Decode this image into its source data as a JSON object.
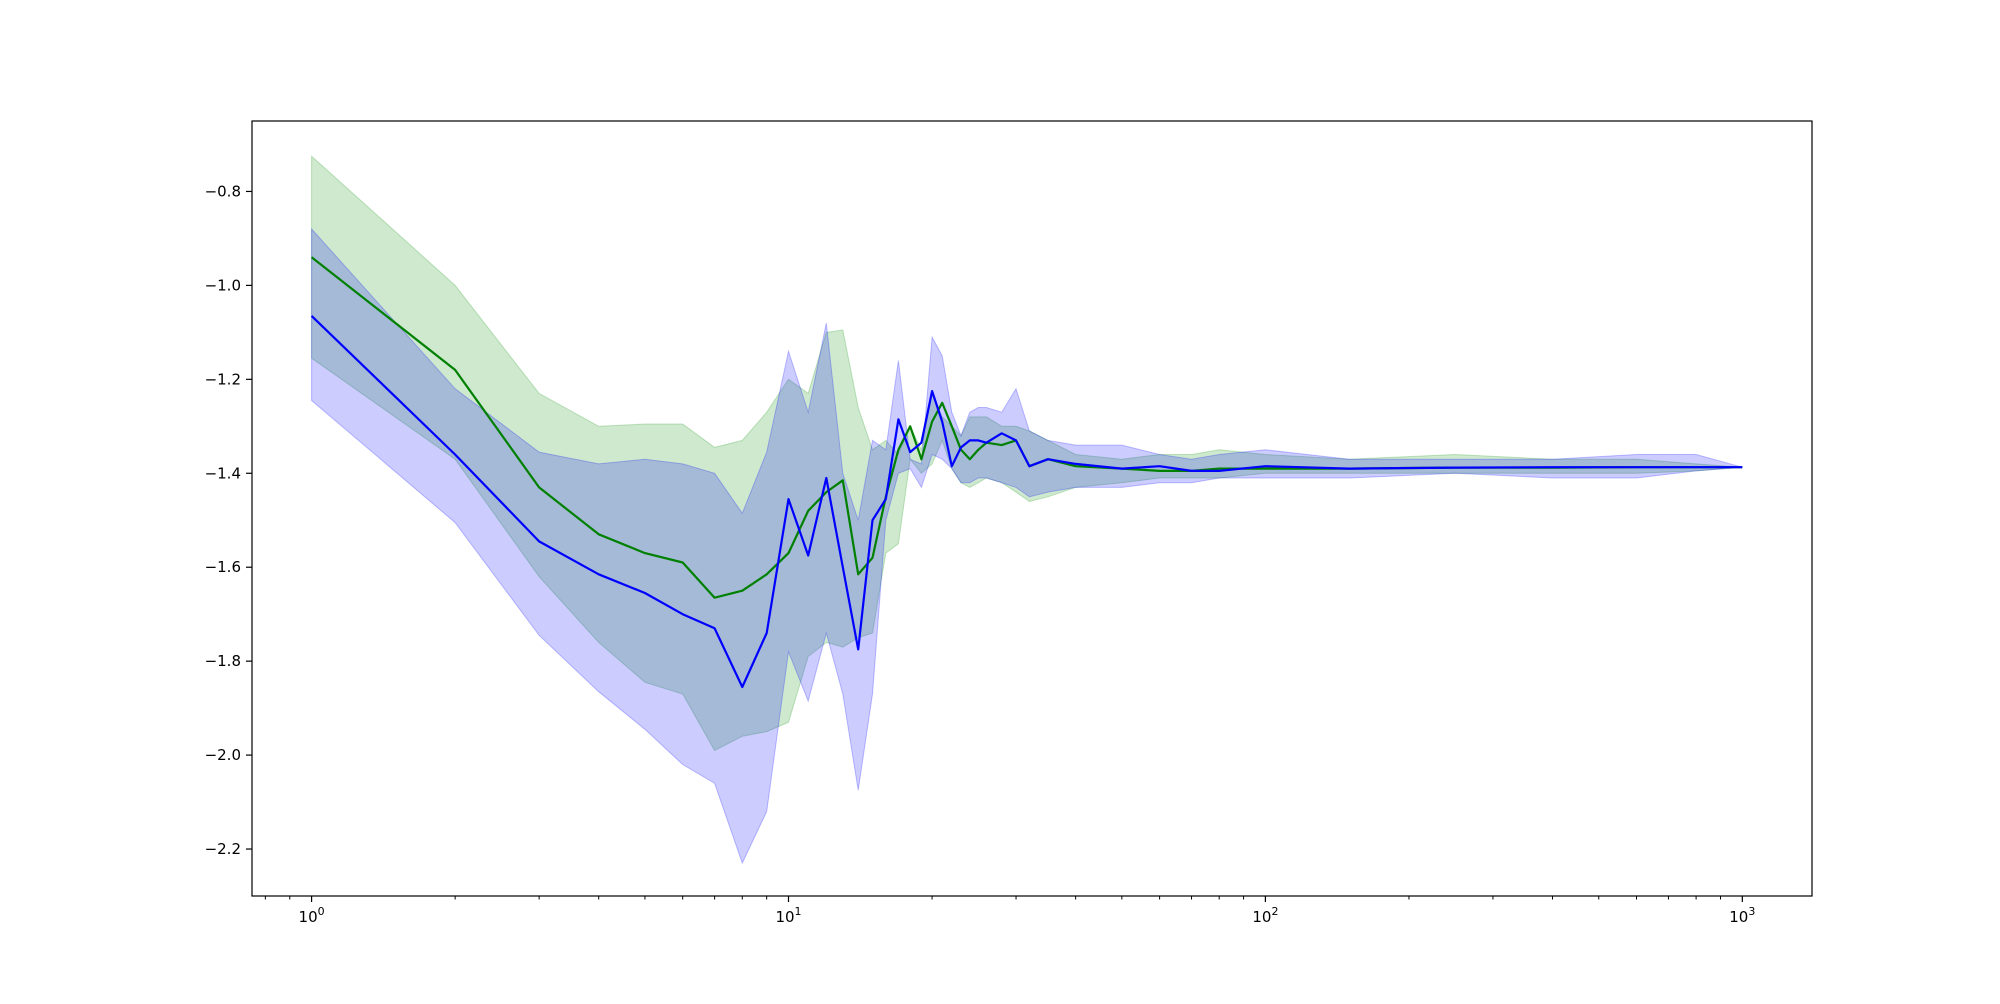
{
  "chart_data": {
    "type": "line",
    "title": "",
    "xlabel": "",
    "ylabel": "",
    "xscale": "log",
    "xlim": [
      0.75,
      1400
    ],
    "ylim": [
      -2.3,
      -0.65
    ],
    "grid": false,
    "legend": "none",
    "x_ticks": [
      {
        "value": 1,
        "base": "10",
        "exp": "0"
      },
      {
        "value": 10,
        "base": "10",
        "exp": "1"
      },
      {
        "value": 100,
        "base": "10",
        "exp": "2"
      },
      {
        "value": 1000,
        "base": "10",
        "exp": "3"
      }
    ],
    "y_ticks": [
      {
        "value": -0.8,
        "label": "−0.8"
      },
      {
        "value": -1.0,
        "label": "−1.0"
      },
      {
        "value": -1.2,
        "label": "−1.2"
      },
      {
        "value": -1.4,
        "label": "−1.4"
      },
      {
        "value": -1.6,
        "label": "−1.6"
      },
      {
        "value": -1.8,
        "label": "−1.8"
      },
      {
        "value": -2.0,
        "label": "−2.0"
      },
      {
        "value": -2.2,
        "label": "−2.2"
      }
    ],
    "series": [
      {
        "color": "#008000",
        "band_color": "#2ca02c",
        "band_opacity": 0.23,
        "x": [
          1,
          2,
          3,
          4,
          5,
          6,
          7,
          8,
          9,
          10,
          11,
          12,
          13,
          14,
          15,
          16,
          17,
          18,
          19,
          20,
          21,
          22,
          23,
          24,
          25,
          26,
          28,
          30,
          32,
          35,
          40,
          50,
          60,
          70,
          80,
          100,
          150,
          250,
          400,
          600,
          800,
          1000
        ],
        "y": [
          -0.94,
          -1.18,
          -1.43,
          -1.53,
          -1.57,
          -1.59,
          -1.665,
          -1.65,
          -1.615,
          -1.57,
          -1.48,
          -1.44,
          -1.415,
          -1.615,
          -1.58,
          -1.45,
          -1.35,
          -1.3,
          -1.37,
          -1.29,
          -1.25,
          -1.3,
          -1.35,
          -1.37,
          -1.35,
          -1.335,
          -1.34,
          -1.33,
          -1.385,
          -1.37,
          -1.385,
          -1.39,
          -1.395,
          -1.395,
          -1.39,
          -1.39,
          -1.39,
          -1.388,
          -1.388,
          -1.387,
          -1.387,
          -1.387
        ],
        "upper": [
          -0.725,
          -1.0,
          -1.23,
          -1.3,
          -1.295,
          -1.295,
          -1.345,
          -1.33,
          -1.27,
          -1.2,
          -1.23,
          -1.1,
          -1.095,
          -1.26,
          -1.35,
          -1.33,
          -1.36,
          -1.3,
          -1.35,
          -1.23,
          -1.28,
          -1.3,
          -1.32,
          -1.28,
          -1.28,
          -1.28,
          -1.3,
          -1.3,
          -1.31,
          -1.33,
          -1.36,
          -1.37,
          -1.36,
          -1.36,
          -1.35,
          -1.36,
          -1.37,
          -1.36,
          -1.37,
          -1.37,
          -1.38,
          -1.387
        ],
        "lower": [
          -1.155,
          -1.37,
          -1.62,
          -1.76,
          -1.845,
          -1.87,
          -1.99,
          -1.96,
          -1.95,
          -1.93,
          -1.79,
          -1.76,
          -1.77,
          -1.75,
          -1.74,
          -1.57,
          -1.55,
          -1.37,
          -1.4,
          -1.38,
          -1.33,
          -1.39,
          -1.42,
          -1.43,
          -1.42,
          -1.41,
          -1.42,
          -1.44,
          -1.46,
          -1.45,
          -1.43,
          -1.42,
          -1.41,
          -1.41,
          -1.41,
          -1.4,
          -1.4,
          -1.4,
          -1.4,
          -1.4,
          -1.395,
          -1.387
        ]
      },
      {
        "color": "#0000ff",
        "band_color": "#0000ff",
        "band_opacity": 0.2,
        "x": [
          1,
          2,
          3,
          4,
          5,
          6,
          7,
          8,
          9,
          10,
          11,
          12,
          13,
          14,
          15,
          16,
          17,
          18,
          19,
          20,
          21,
          22,
          23,
          24,
          25,
          26,
          28,
          30,
          32,
          35,
          40,
          50,
          60,
          70,
          80,
          100,
          150,
          250,
          400,
          600,
          800,
          1000
        ],
        "y": [
          -1.065,
          -1.36,
          -1.545,
          -1.615,
          -1.655,
          -1.7,
          -1.73,
          -1.855,
          -1.74,
          -1.455,
          -1.575,
          -1.41,
          -1.6,
          -1.775,
          -1.5,
          -1.455,
          -1.285,
          -1.355,
          -1.335,
          -1.225,
          -1.29,
          -1.385,
          -1.345,
          -1.33,
          -1.33,
          -1.335,
          -1.315,
          -1.33,
          -1.385,
          -1.37,
          -1.38,
          -1.39,
          -1.385,
          -1.395,
          -1.395,
          -1.385,
          -1.39,
          -1.388,
          -1.387,
          -1.387,
          -1.387,
          -1.387
        ],
        "upper": [
          -0.88,
          -1.22,
          -1.355,
          -1.38,
          -1.37,
          -1.38,
          -1.4,
          -1.485,
          -1.355,
          -1.14,
          -1.27,
          -1.08,
          -1.4,
          -1.5,
          -1.33,
          -1.35,
          -1.16,
          -1.37,
          -1.38,
          -1.11,
          -1.15,
          -1.27,
          -1.32,
          -1.27,
          -1.26,
          -1.26,
          -1.27,
          -1.22,
          -1.31,
          -1.33,
          -1.34,
          -1.34,
          -1.36,
          -1.37,
          -1.36,
          -1.35,
          -1.37,
          -1.37,
          -1.37,
          -1.36,
          -1.36,
          -1.387
        ],
        "lower": [
          -1.245,
          -1.505,
          -1.745,
          -1.865,
          -1.945,
          -2.02,
          -2.06,
          -2.23,
          -2.12,
          -1.78,
          -1.885,
          -1.74,
          -1.87,
          -2.075,
          -1.87,
          -1.5,
          -1.4,
          -1.39,
          -1.43,
          -1.36,
          -1.37,
          -1.39,
          -1.42,
          -1.42,
          -1.41,
          -1.41,
          -1.42,
          -1.43,
          -1.45,
          -1.44,
          -1.43,
          -1.43,
          -1.42,
          -1.42,
          -1.41,
          -1.41,
          -1.41,
          -1.4,
          -1.41,
          -1.41,
          -1.395,
          -1.387
        ]
      }
    ]
  }
}
